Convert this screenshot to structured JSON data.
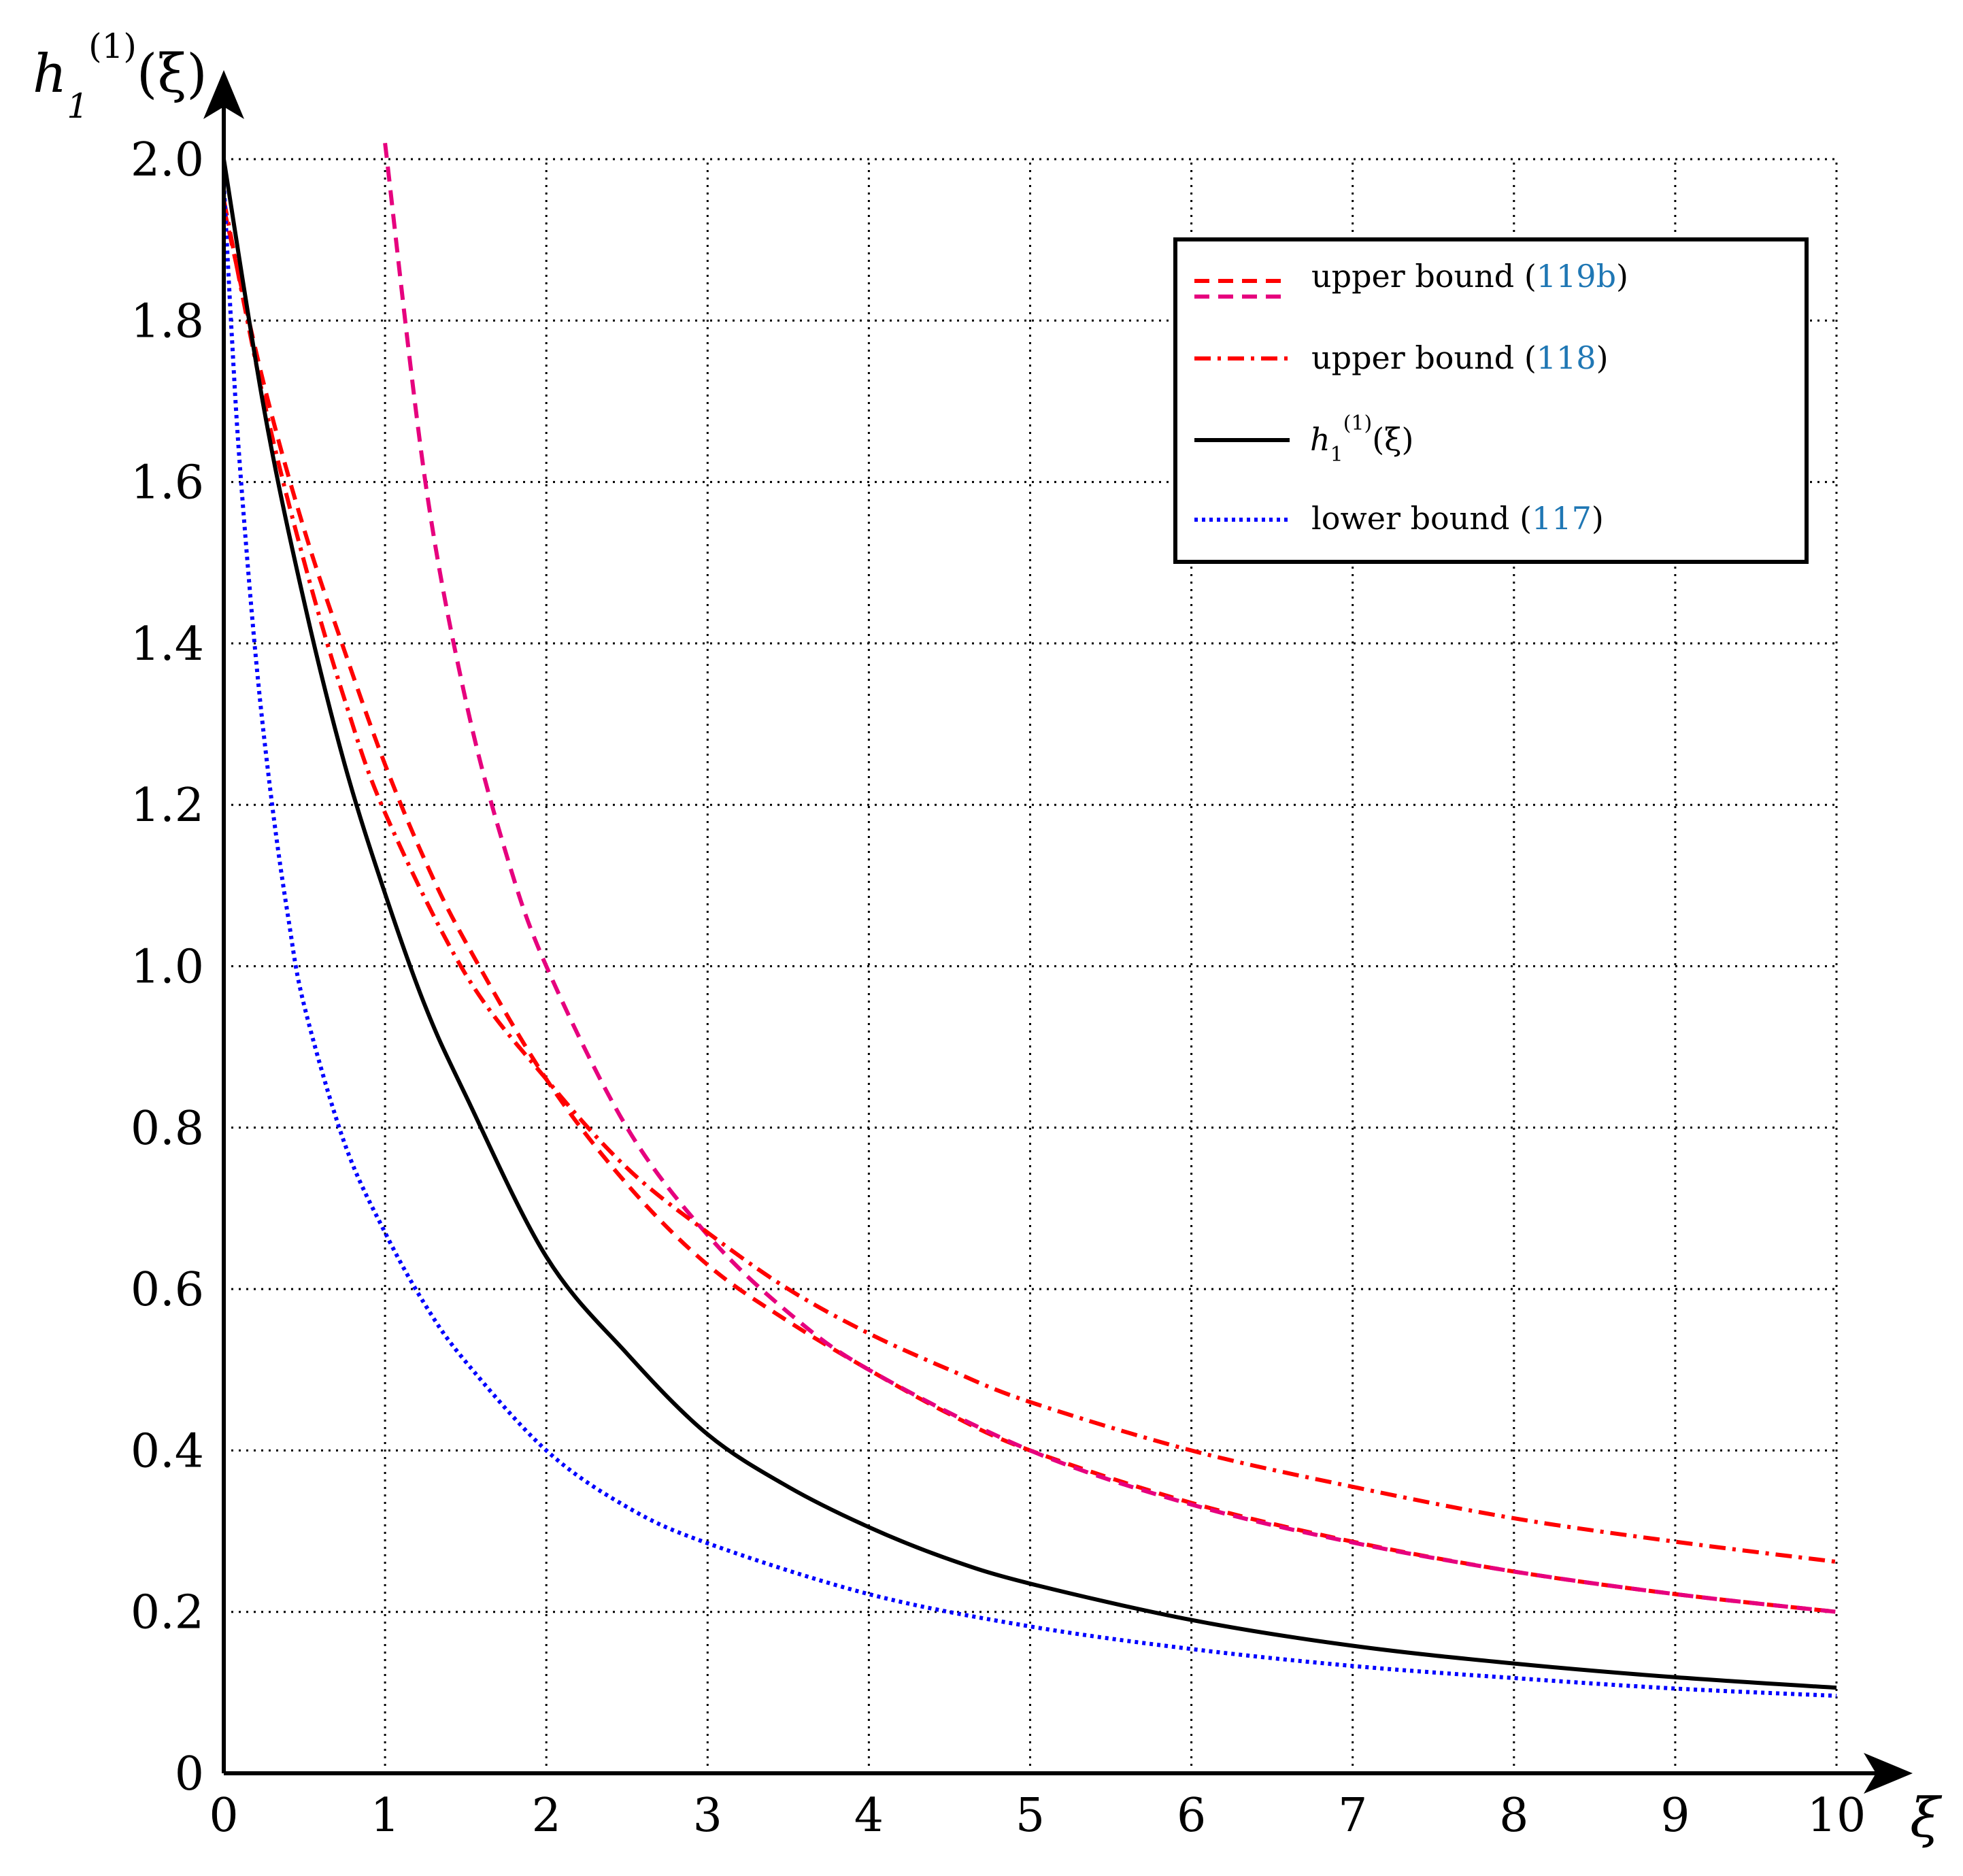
{
  "chart_data": {
    "type": "line",
    "title": "",
    "xlabel": "ξ",
    "ylabel": {
      "base": "h",
      "sub": "1",
      "sup": "(1)",
      "arg": "(ξ)"
    },
    "xlim": [
      0,
      10
    ],
    "ylim": [
      0,
      2.0
    ],
    "grid": true,
    "grid_style": "dotted",
    "legend_position": "top-right",
    "x_ticks": [
      "0",
      "1",
      "2",
      "3",
      "4",
      "5",
      "6",
      "7",
      "8",
      "9",
      "10"
    ],
    "y_ticks": [
      "0",
      "0.2",
      "0.4",
      "0.6",
      "0.8",
      "1.0",
      "1.2",
      "1.4",
      "1.6",
      "1.8",
      "2.0"
    ],
    "x_tick_values": [
      0,
      1,
      2,
      3,
      4,
      5,
      6,
      7,
      8,
      9,
      10
    ],
    "y_tick_values": [
      0,
      0.2,
      0.4,
      0.6,
      0.8,
      1.0,
      1.2,
      1.4,
      1.6,
      1.8,
      2.0
    ],
    "legend": [
      {
        "text": "upper bound (",
        "ref": "119b",
        "close": ")",
        "styles": [
          "dashed-red",
          "dashed-magenta"
        ]
      },
      {
        "text": "upper bound (",
        "ref": "118",
        "close": ")",
        "styles": [
          "dashdot-red"
        ]
      },
      {
        "text": "",
        "math": {
          "base": "h",
          "sub": "1",
          "sup": "(1)",
          "arg": "(ξ)"
        },
        "styles": [
          "solid-black"
        ]
      },
      {
        "text": "lower bound (",
        "ref": "117",
        "close": ")",
        "styles": [
          "dotted-blue"
        ]
      }
    ],
    "series": [
      {
        "color": "#ff0000",
        "style": "dashed",
        "x": [
          0,
          0.25,
          0.5,
          0.75,
          1,
          1.25,
          1.5,
          2,
          2.5,
          3,
          3.5,
          4,
          4.5,
          5,
          6,
          7,
          8,
          9,
          10
        ],
        "y": [
          1.94,
          1.72,
          1.54,
          1.39,
          1.25,
          1.13,
          1.03,
          0.86,
          0.73,
          0.63,
          0.56,
          0.5,
          0.445,
          0.4,
          0.335,
          0.287,
          0.25,
          0.222,
          0.2
        ]
      },
      {
        "color": "#e6007e",
        "style": "dashed",
        "x": [
          1,
          1.25,
          1.5,
          1.75,
          2,
          2.5,
          3,
          3.5,
          4,
          5,
          6,
          7,
          8,
          9,
          10
        ],
        "y": [
          2.02,
          1.6,
          1.33,
          1.14,
          1.0,
          0.8,
          0.667,
          0.571,
          0.5,
          0.4,
          0.333,
          0.286,
          0.25,
          0.222,
          0.2
        ]
      },
      {
        "color": "#ff0000",
        "style": "dashdot",
        "x": [
          0,
          0.25,
          0.5,
          0.75,
          1,
          1.5,
          2,
          2.5,
          3,
          3.5,
          4,
          4.5,
          5,
          6,
          7,
          8,
          9,
          10
        ],
        "y": [
          1.95,
          1.7,
          1.5,
          1.33,
          1.19,
          0.99,
          0.86,
          0.75,
          0.67,
          0.6,
          0.545,
          0.5,
          0.46,
          0.4,
          0.355,
          0.316,
          0.287,
          0.262
        ]
      },
      {
        "color": "#000000",
        "style": "solid",
        "x": [
          0,
          0.25,
          0.5,
          0.75,
          1,
          1.25,
          1.5,
          2,
          2.5,
          3,
          3.5,
          4,
          4.5,
          5,
          6,
          7,
          8,
          9,
          10
        ],
        "y": [
          2.0,
          1.69,
          1.45,
          1.25,
          1.09,
          0.95,
          0.84,
          0.64,
          0.52,
          0.42,
          0.355,
          0.305,
          0.265,
          0.235,
          0.19,
          0.158,
          0.136,
          0.119,
          0.106
        ]
      },
      {
        "color": "#0000ff",
        "style": "dotted",
        "x": [
          0,
          0.05,
          0.1,
          0.2,
          0.3,
          0.4,
          0.5,
          0.75,
          1,
          1.25,
          1.5,
          2,
          2.5,
          3,
          4,
          5,
          6,
          7,
          8,
          9,
          10
        ],
        "y": [
          1.97,
          1.78,
          1.62,
          1.38,
          1.2,
          1.06,
          0.95,
          0.78,
          0.67,
          0.58,
          0.51,
          0.4,
          0.33,
          0.285,
          0.222,
          0.182,
          0.154,
          0.133,
          0.118,
          0.105,
          0.096
        ]
      }
    ]
  }
}
